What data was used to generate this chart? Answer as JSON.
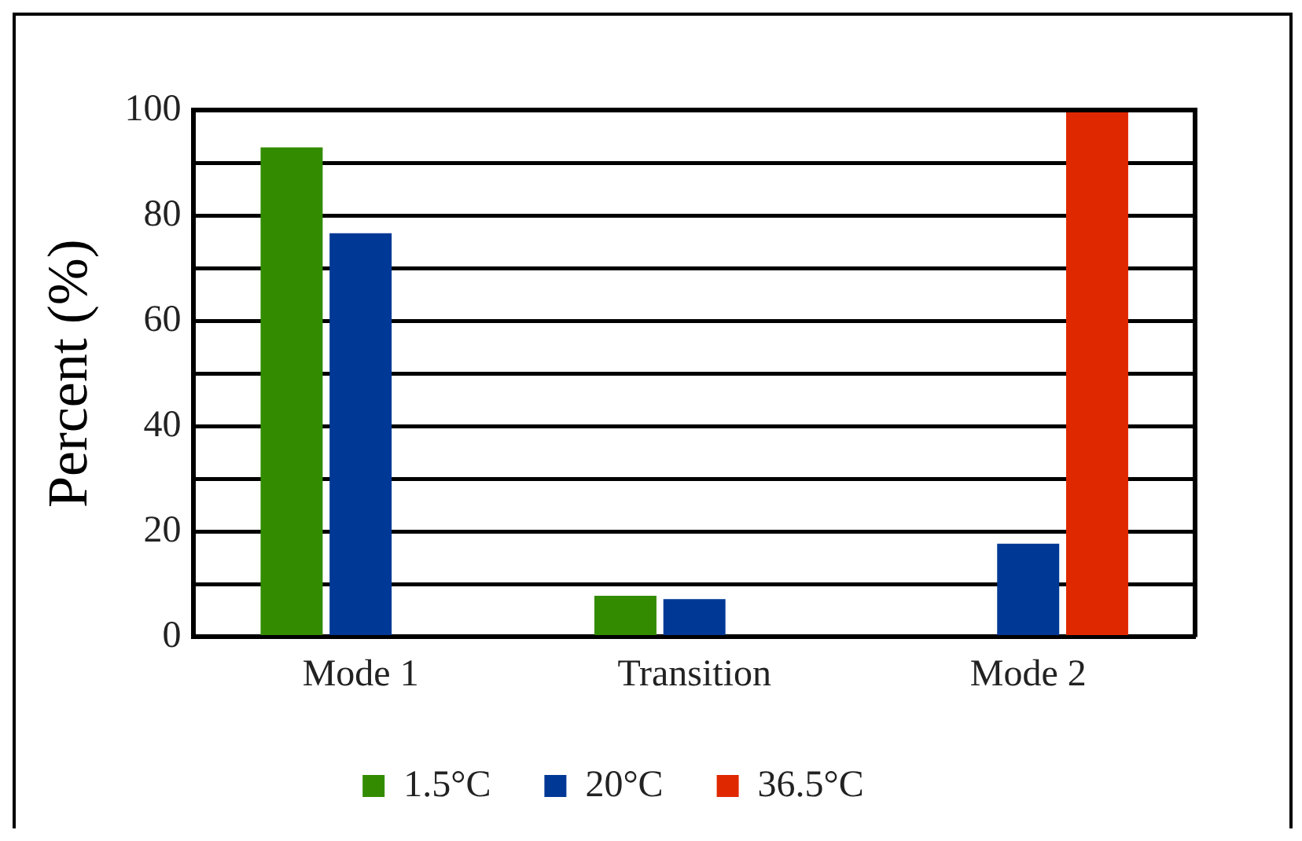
{
  "chart_data": {
    "type": "bar",
    "ylabel": "Percent (%)",
    "categories": [
      "Mode 1",
      "Transition",
      "Mode 2"
    ],
    "series": [
      {
        "name": "1.5°C",
        "color": "#338c00",
        "values": [
          92.9,
          7.8,
          null
        ]
      },
      {
        "name": "20°C",
        "color": "#003896",
        "values": [
          76.6,
          7.2,
          17.7
        ]
      },
      {
        "name": "36.5°C",
        "color": "#e02800",
        "values": [
          null,
          null,
          100
        ]
      }
    ],
    "ylim": [
      0,
      100
    ],
    "yticks": [
      0,
      {
        "value": 10,
        "label": null
      },
      20,
      {
        "value": 30,
        "label": null
      },
      40,
      {
        "value": 50,
        "label": null
      },
      60,
      {
        "value": 70,
        "label": null
      },
      80,
      {
        "value": 90,
        "label": null
      },
      100
    ],
    "grid": "y",
    "legend": "bottom"
  }
}
